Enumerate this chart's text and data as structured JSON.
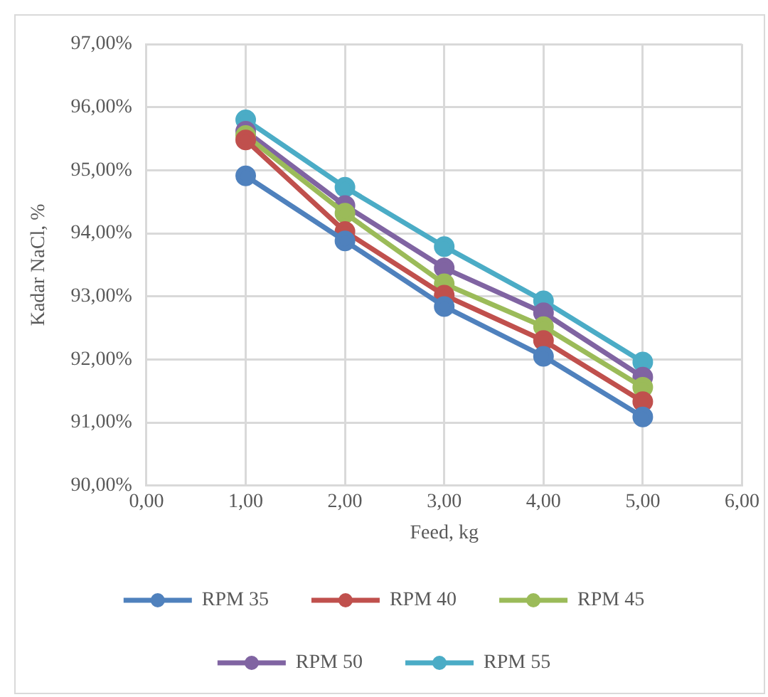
{
  "chart_data": {
    "type": "line",
    "xlabel": "Feed, kg",
    "ylabel": "Kadar NaCl, %",
    "x": [
      1,
      2,
      3,
      4,
      5
    ],
    "series": [
      {
        "name": "RPM 35",
        "color": "#4f81bd",
        "values": [
          94.91,
          93.88,
          92.84,
          92.05,
          91.09
        ]
      },
      {
        "name": "RPM 40",
        "color": "#c0504d",
        "values": [
          95.48,
          94.03,
          93.02,
          92.3,
          91.33
        ]
      },
      {
        "name": "RPM 45",
        "color": "#9bbb59",
        "values": [
          95.55,
          94.32,
          93.2,
          92.52,
          91.56
        ]
      },
      {
        "name": "RPM 50",
        "color": "#8064a2",
        "values": [
          95.62,
          94.44,
          93.45,
          92.74,
          91.72
        ]
      },
      {
        "name": "RPM 55",
        "color": "#4bacc6",
        "values": [
          95.8,
          94.73,
          93.79,
          92.93,
          91.96
        ]
      }
    ],
    "xlim": [
      0,
      6
    ],
    "xticks": [
      {
        "value": 0,
        "label": "0,00"
      },
      {
        "value": 1,
        "label": "1,00"
      },
      {
        "value": 2,
        "label": "2,00"
      },
      {
        "value": 3,
        "label": "3,00"
      },
      {
        "value": 4,
        "label": "4,00"
      },
      {
        "value": 5,
        "label": "5,00"
      },
      {
        "value": 6,
        "label": "6,00"
      }
    ],
    "ylim": [
      90,
      97
    ],
    "yticks": [
      {
        "value": 90,
        "label": "90,00%"
      },
      {
        "value": 91,
        "label": "91,00%"
      },
      {
        "value": 92,
        "label": "92,00%"
      },
      {
        "value": 93,
        "label": "93,00%"
      },
      {
        "value": 94,
        "label": "94,00%"
      },
      {
        "value": 95,
        "label": "95,00%"
      },
      {
        "value": 96,
        "label": "96,00%"
      },
      {
        "value": 97,
        "label": "97,00%"
      }
    ],
    "grid": true,
    "legend": "bottom",
    "marker": "circle",
    "line_style": "solid"
  }
}
